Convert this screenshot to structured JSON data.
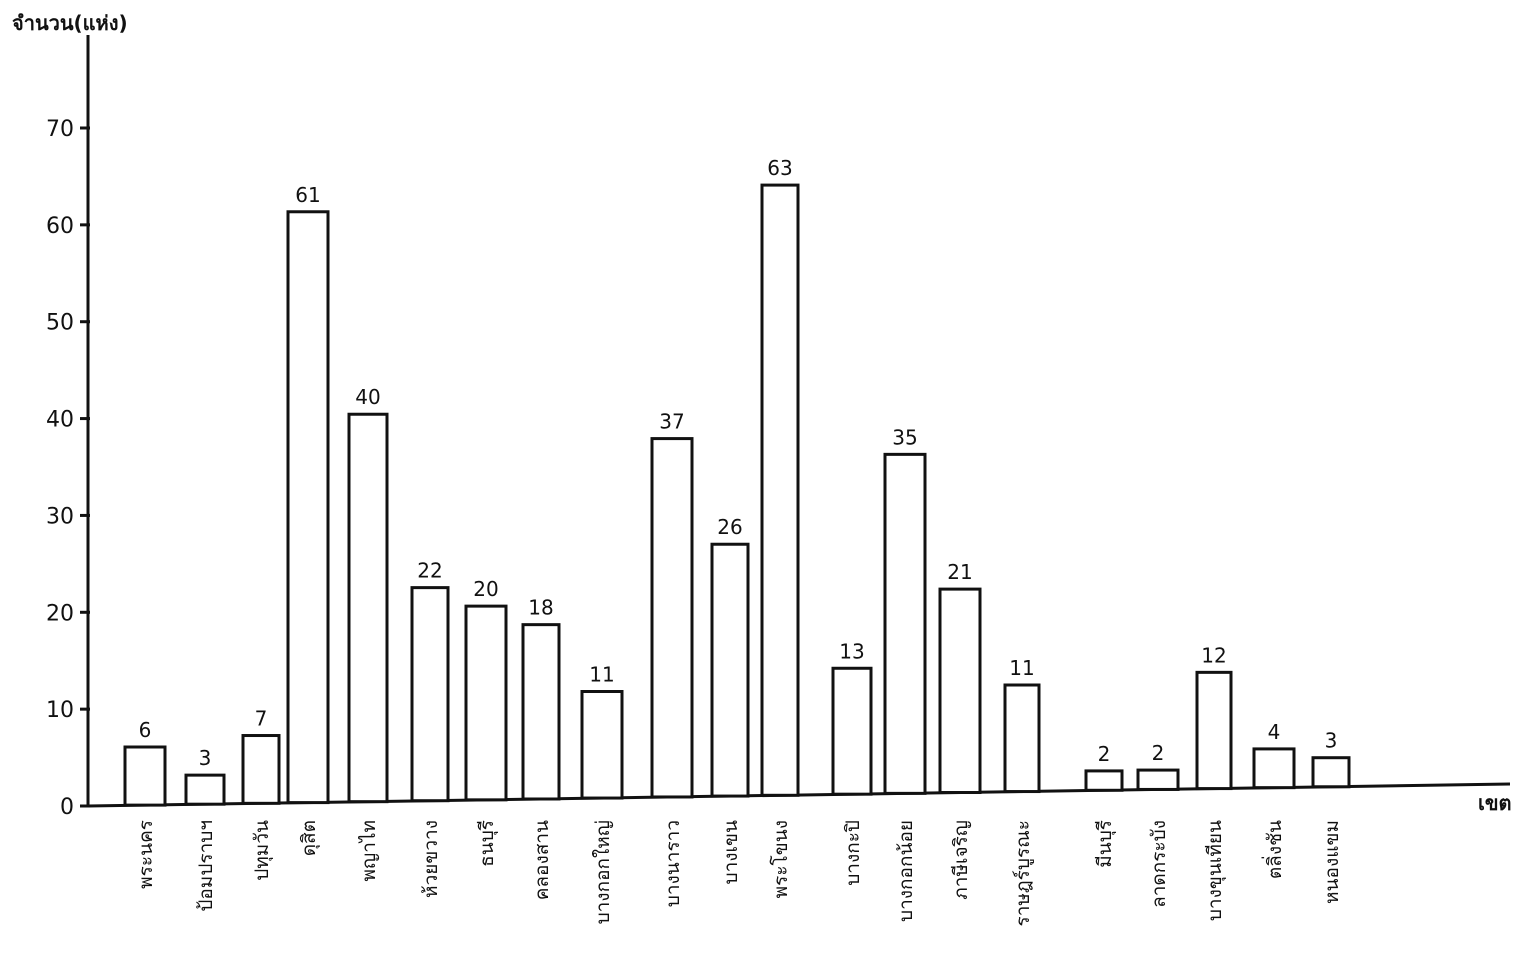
{
  "chart_data": {
    "type": "bar",
    "ylabel": "จำนวน(แห่ง)",
    "xlabel": "เขต",
    "ylim": [
      0,
      70
    ],
    "yticks": [
      0,
      10,
      20,
      30,
      40,
      50,
      60,
      70
    ],
    "grid": false,
    "categories": [
      "พระนคร",
      "ป้อมปราบฯ",
      "ปทุมวัน",
      "ดุสิต",
      "พญาไท",
      "ห้วยขวาง",
      "ธนบุรี",
      "คลองสาน",
      "บางกอกใหญ่",
      "บางนาราว",
      "บางเขน",
      "พระโขนง",
      "บางกะปิ",
      "บางกอกน้อย",
      "ภาษีเจริญ",
      "ราษฎร์บูรณะ",
      "มีนบุรี",
      "ลาดกระบัง",
      "บางขุนเทียน",
      "ตลิ่งชัน",
      "หนองแขม"
    ],
    "values": [
      6,
      3,
      7,
      61,
      40,
      22,
      20,
      18,
      11,
      37,
      26,
      63,
      13,
      35,
      21,
      11,
      2,
      2,
      12,
      4,
      3
    ],
    "value_labels": [
      "6",
      "3",
      "7",
      "61",
      "40",
      "22",
      "20",
      "18",
      "11",
      "37",
      "26",
      "63",
      "13",
      "35",
      "21",
      "11",
      "2",
      "2",
      "12",
      "4",
      "3"
    ]
  }
}
